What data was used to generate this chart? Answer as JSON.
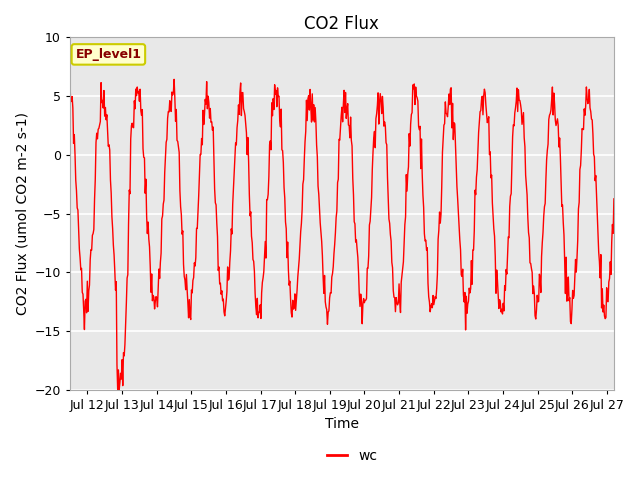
{
  "title": "CO2 Flux",
  "xlabel": "Time",
  "ylabel": "CO2 Flux (umol CO2 m-2 s-1)",
  "legend_label": "wc",
  "line_color": "#ff0000",
  "line_width": 1.0,
  "ylim": [
    -20,
    10
  ],
  "xlim_start": 11.5,
  "xlim_end": 27.2,
  "xtick_positions": [
    12,
    13,
    14,
    15,
    16,
    17,
    18,
    19,
    20,
    21,
    22,
    23,
    24,
    25,
    26,
    27
  ],
  "xtick_labels": [
    "Jul 12",
    "Jul 13",
    "Jul 14",
    "Jul 15",
    "Jul 16",
    "Jul 17",
    "Jul 18",
    "Jul 19",
    "Jul 20",
    "Jul 21",
    "Jul 22",
    "Jul 23",
    "Jul 24",
    "Jul 25",
    "Jul 26",
    "Jul 27"
  ],
  "ytick_positions": [
    -20,
    -15,
    -10,
    -5,
    0,
    5,
    10
  ],
  "fig_bg_color": "#ffffff",
  "ax_bg_color": "#e8e8e8",
  "grid_color": "#ffffff",
  "annotation_text": "EP_level1",
  "annotation_bg": "#ffffcc",
  "annotation_border": "#cccc00",
  "annotation_text_color": "#880000",
  "title_fontsize": 12,
  "tick_fontsize": 9,
  "label_fontsize": 10
}
